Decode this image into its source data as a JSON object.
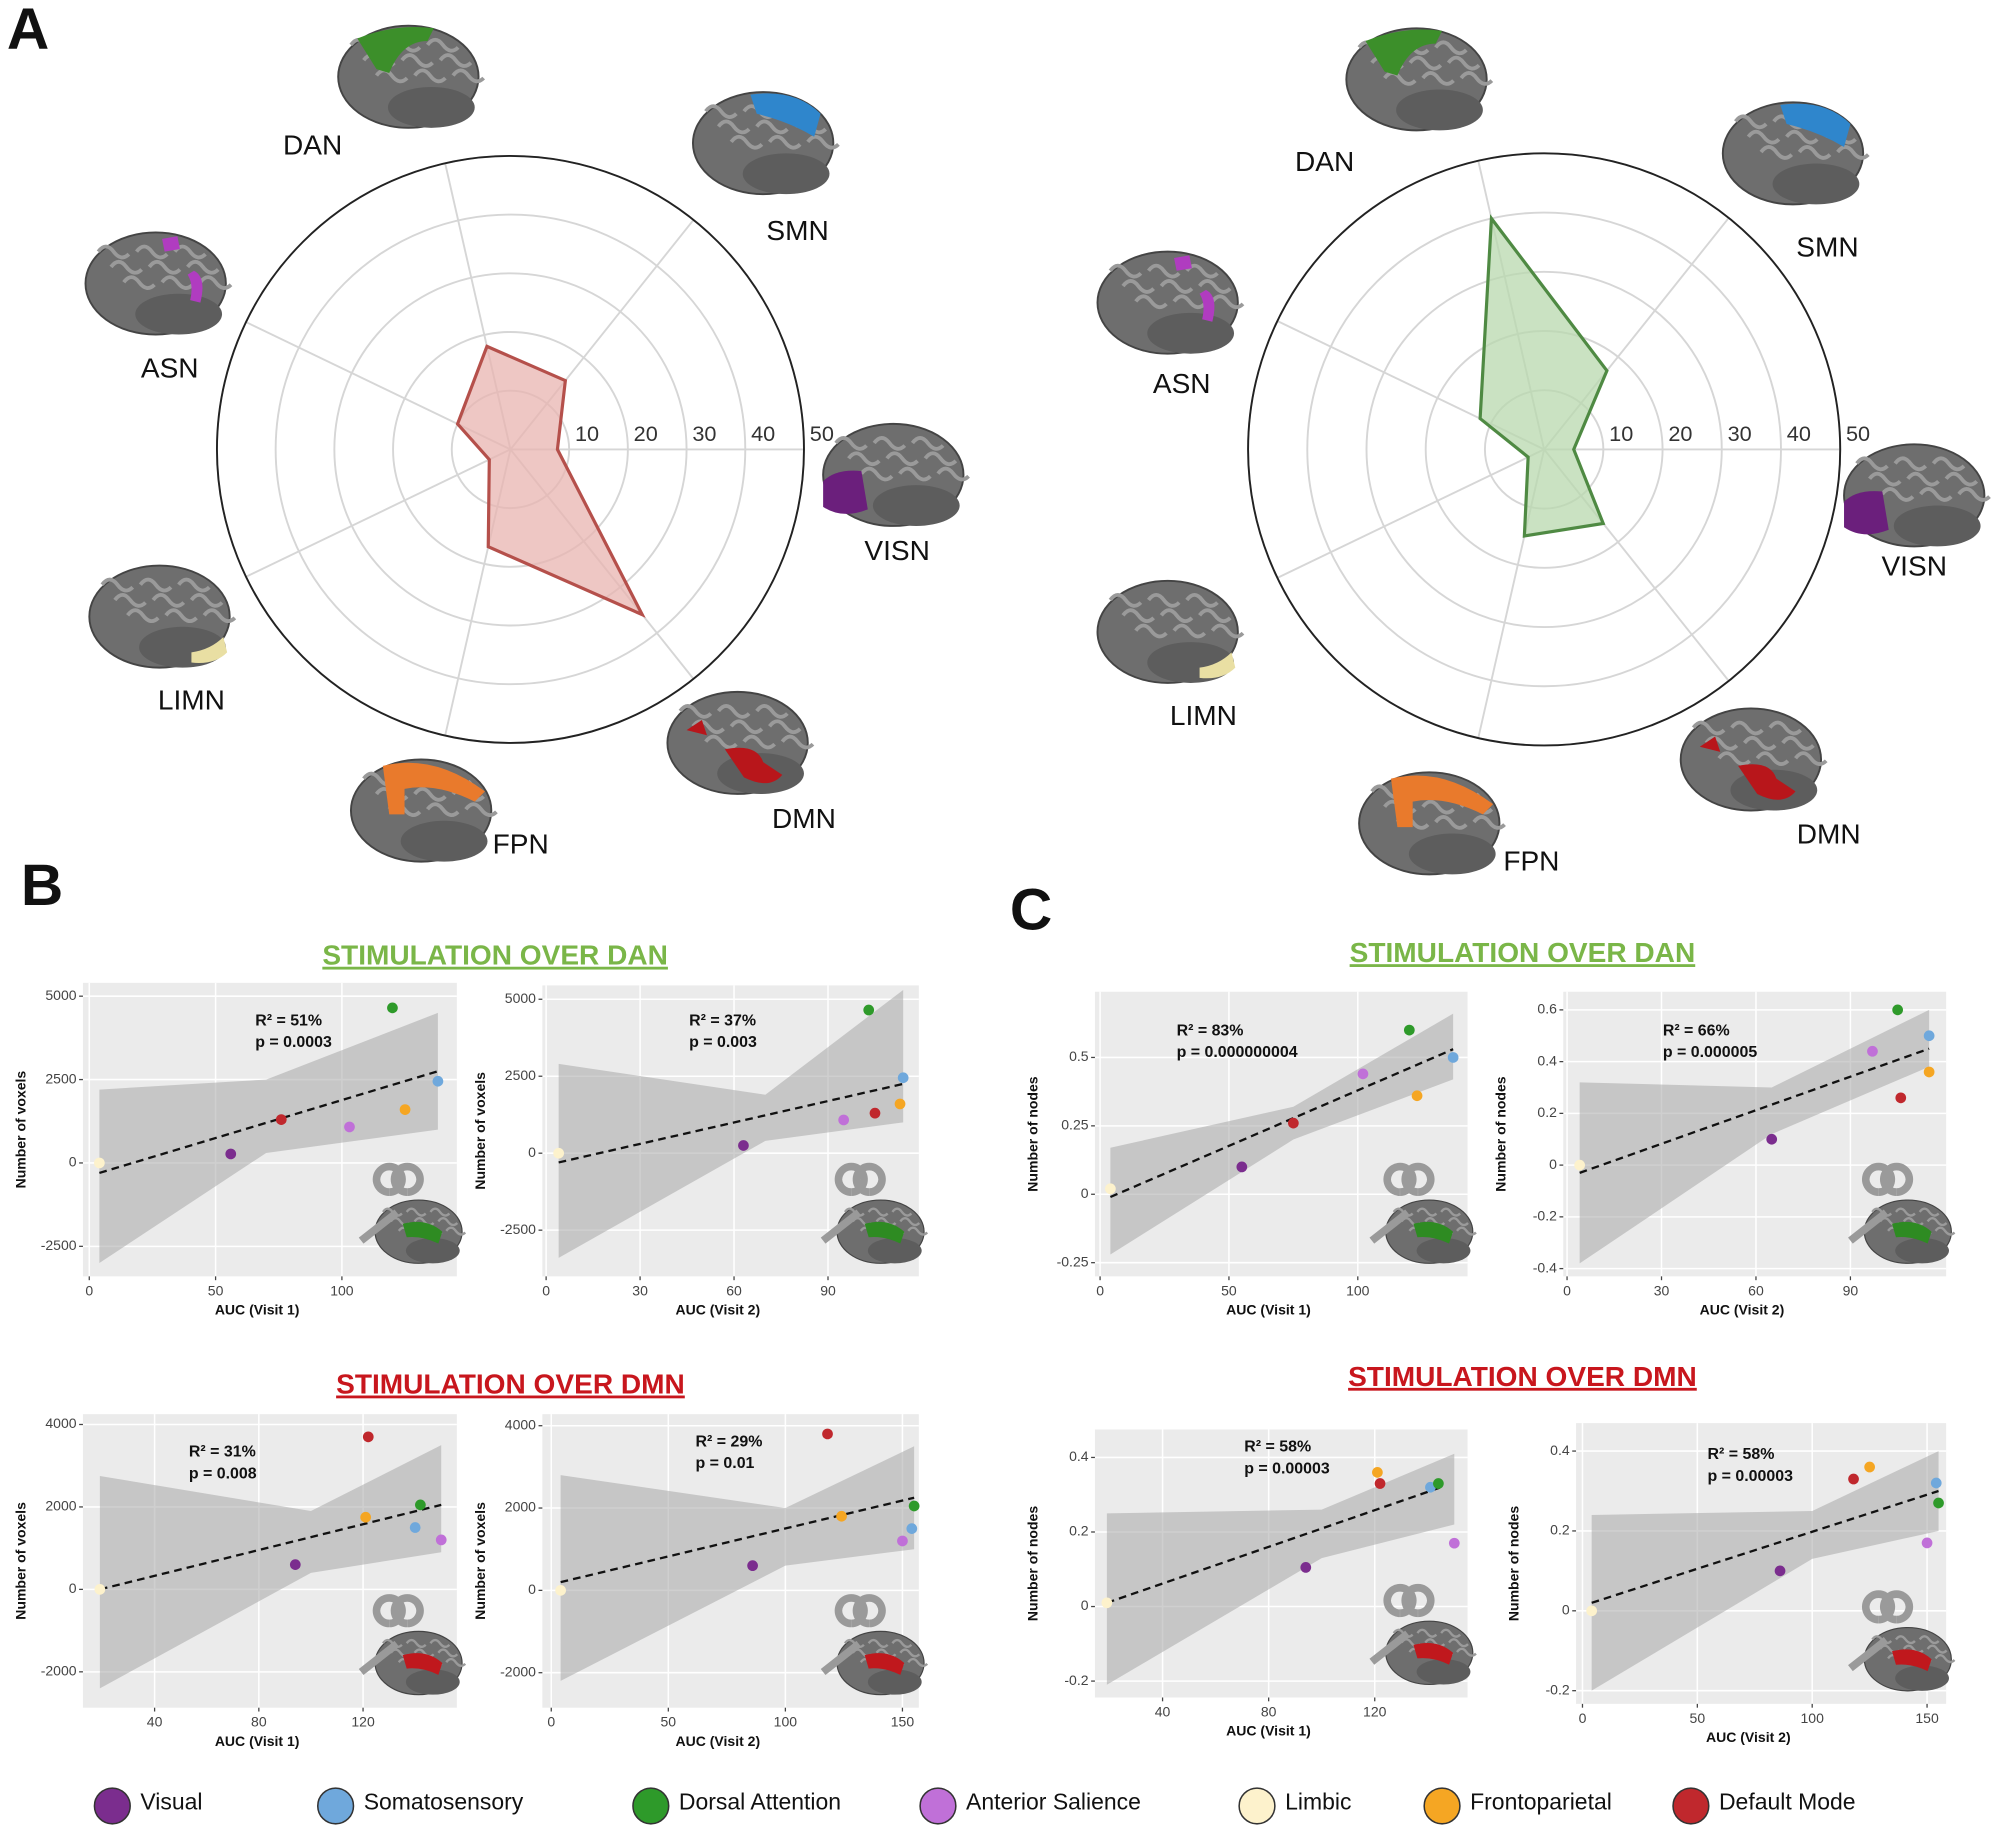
{
  "panel_letters": [
    "A",
    "B",
    "C"
  ],
  "headings": [
    "STIMULATION OVER DAN",
    "STIMULATION OVER DAN",
    "STIMULATION OVER DMN",
    "STIMULATION OVER DMN"
  ],
  "legend": [
    {
      "name": "Visual",
      "color": "#7b2d8e"
    },
    {
      "name": "Somatosensory",
      "color": "#6fa8dc"
    },
    {
      "name": "Dorsal Attention",
      "color": "#2e9a2a"
    },
    {
      "name": "Anterior Salience",
      "color": "#c070d8"
    },
    {
      "name": "Limbic",
      "color": "#fdf2cc"
    },
    {
      "name": "Frontoparietal",
      "color": "#f5a623"
    },
    {
      "name": "Default Mode",
      "color": "#c0282d"
    }
  ],
  "chart_data": [
    {
      "type": "radar",
      "categories": [
        "DAN",
        "SMN",
        "VISN",
        "DMN",
        "FPN",
        "LIMN",
        "ASN"
      ],
      "values": [
        18,
        15,
        8,
        36,
        17,
        4,
        10
      ],
      "color": "#b5504b",
      "fill": "#e8b4b0",
      "rlim": [
        0,
        50
      ],
      "rticks": [
        10,
        20,
        30,
        40,
        50
      ]
    },
    {
      "type": "radar",
      "categories": [
        "DAN",
        "SMN",
        "VISN",
        "DMN",
        "FPN",
        "LIMN",
        "ASN"
      ],
      "values": [
        40,
        17,
        5,
        16,
        15,
        3,
        12
      ],
      "color": "#4f8a43",
      "fill": "#b8d8ad",
      "rlim": [
        0,
        50
      ],
      "rticks": [
        10,
        20,
        30,
        40,
        50
      ]
    },
    {
      "type": "scatter",
      "xlabel": "AUC (Visit 1)",
      "ylabel": "Number of voxels",
      "annotations": [
        "R² = 51%",
        "p = 0.0003"
      ],
      "x": [
        56,
        138,
        120,
        103,
        4,
        125,
        76
      ],
      "y": [
        270,
        2450,
        4650,
        1080,
        0,
        1600,
        1300
      ],
      "fit": {
        "x": [
          4,
          138
        ],
        "y": [
          -300,
          2750
        ]
      },
      "band": {
        "x": [
          4,
          70,
          138
        ],
        "low": [
          -3000,
          300,
          1000
        ],
        "high": [
          2200,
          2500,
          4500
        ]
      },
      "xlim": [
        -2.5,
        145.5
      ],
      "ylim": [
        -3400,
        5400
      ],
      "xticks": [
        0,
        50,
        100
      ],
      "yticks": [
        -2500,
        0,
        2500,
        5000
      ],
      "grid": true,
      "stim": "#2e8b22"
    },
    {
      "type": "scatter",
      "xlabel": "AUC (Visit 2)",
      "ylabel": "Number of voxels",
      "annotations": [
        "R² = 37%",
        "p = 0.003"
      ],
      "x": [
        63,
        114,
        103,
        95,
        4,
        113,
        105
      ],
      "y": [
        250,
        2450,
        4650,
        1080,
        0,
        1600,
        1300
      ],
      "fit": {
        "x": [
          4,
          114
        ],
        "y": [
          -300,
          2250
        ]
      },
      "band": {
        "x": [
          4,
          70,
          114
        ],
        "low": [
          -3400,
          400,
          1000
        ],
        "high": [
          2900,
          1900,
          5300
        ]
      },
      "xlim": [
        -1.2,
        119
      ],
      "ylim": [
        -4000,
        5450
      ],
      "xticks": [
        0,
        30,
        60,
        90
      ],
      "yticks": [
        -2500,
        0,
        2500,
        5000
      ],
      "grid": true,
      "stim": "#2e8b22"
    },
    {
      "type": "scatter",
      "xlabel": "AUC (Visit 1)",
      "ylabel": "Number of nodes",
      "annotations": [
        "R² = 83%",
        "p = 0.000000004"
      ],
      "x": [
        55,
        137,
        120,
        102,
        4,
        123,
        75
      ],
      "y": [
        0.1,
        0.5,
        0.6,
        0.44,
        0.02,
        0.36,
        0.26
      ],
      "fit": {
        "x": [
          4,
          137
        ],
        "y": [
          -0.01,
          0.53
        ]
      },
      "band": {
        "x": [
          4,
          75,
          137
        ],
        "low": [
          -0.22,
          0.2,
          0.42
        ],
        "high": [
          0.17,
          0.32,
          0.66
        ]
      },
      "xlim": [
        -2,
        142.6
      ],
      "ylim": [
        -0.3,
        0.74
      ],
      "xticks": [
        0,
        50,
        100
      ],
      "yticks": [
        -0.25,
        0,
        0.25,
        0.5
      ],
      "grid": true,
      "stim": "#2e8b22"
    },
    {
      "type": "scatter",
      "xlabel": "AUC (Visit 2)",
      "ylabel": "Number of nodes",
      "annotations": [
        "R² = 66%",
        "p = 0.000005"
      ],
      "x": [
        65,
        115,
        105,
        97,
        4,
        115,
        106
      ],
      "y": [
        0.1,
        0.5,
        0.6,
        0.44,
        0,
        0.36,
        0.26
      ],
      "fit": {
        "x": [
          4,
          115
        ],
        "y": [
          -0.03,
          0.45
        ]
      },
      "band": {
        "x": [
          4,
          65,
          115
        ],
        "low": [
          -0.38,
          0.12,
          0.38
        ],
        "high": [
          0.32,
          0.3,
          0.6
        ]
      },
      "xlim": [
        -1.2,
        120.4
      ],
      "ylim": [
        -0.43,
        0.67
      ],
      "xticks": [
        0,
        30,
        60,
        90
      ],
      "yticks": [
        -0.4,
        -0.2,
        0,
        0.2,
        0.4,
        0.6
      ],
      "grid": true,
      "stim": "#2e8b22"
    },
    {
      "type": "scatter",
      "xlabel": "AUC (Visit 1)",
      "ylabel": "Number of voxels",
      "annotations": [
        "R² = 31%",
        "p = 0.008"
      ],
      "x": [
        94,
        140,
        142,
        150,
        19,
        121,
        122
      ],
      "y": [
        600,
        1500,
        2050,
        1200,
        0,
        1750,
        3700
      ],
      "fit": {
        "x": [
          19,
          150
        ],
        "y": [
          0,
          2050
        ]
      },
      "band": {
        "x": [
          19,
          100,
          150
        ],
        "low": [
          -2400,
          400,
          900
        ],
        "high": [
          2750,
          1900,
          3500
        ]
      },
      "xlim": [
        12.5,
        156
      ],
      "ylim": [
        -2870,
        4250
      ],
      "xticks": [
        40,
        80,
        120
      ],
      "yticks": [
        -2000,
        0,
        2000,
        4000
      ],
      "grid": true,
      "stim": "#c0181d"
    },
    {
      "type": "scatter",
      "xlabel": "AUC (Visit 2)",
      "ylabel": "Number of voxels",
      "annotations": [
        "R² = 29%",
        "p = 0.01"
      ],
      "x": [
        86,
        154,
        155,
        150,
        4,
        124,
        118
      ],
      "y": [
        600,
        1500,
        2050,
        1200,
        0,
        1800,
        3800
      ],
      "fit": {
        "x": [
          4,
          155
        ],
        "y": [
          200,
          2250
        ]
      },
      "band": {
        "x": [
          4,
          100,
          155
        ],
        "low": [
          -2200,
          600,
          1000
        ],
        "high": [
          2800,
          2000,
          3500
        ]
      },
      "xlim": [
        -3.8,
        157
      ],
      "ylim": [
        -2850,
        4280
      ],
      "xticks": [
        0,
        50,
        100,
        150
      ],
      "yticks": [
        -2000,
        0,
        2000,
        4000
      ],
      "grid": true,
      "stim": "#c0181d"
    },
    {
      "type": "scatter",
      "xlabel": "AUC (Visit 1)",
      "ylabel": "Number of nodes",
      "annotations": [
        "R² = 58%",
        "p = 0.00003"
      ],
      "x": [
        94,
        141,
        144,
        150,
        19,
        121,
        122
      ],
      "y": [
        0.105,
        0.32,
        0.33,
        0.17,
        0.01,
        0.36,
        0.33
      ],
      "fit": {
        "x": [
          19,
          145
        ],
        "y": [
          0.01,
          0.32
        ]
      },
      "band": {
        "x": [
          19,
          100,
          150
        ],
        "low": [
          -0.21,
          0.13,
          0.22
        ],
        "high": [
          0.25,
          0.26,
          0.41
        ]
      },
      "xlim": [
        14.5,
        155
      ],
      "ylim": [
        -0.244,
        0.475
      ],
      "xticks": [
        40,
        80,
        120
      ],
      "yticks": [
        -0.2,
        0,
        0.2,
        0.4
      ],
      "grid": true,
      "stim": "#c0181d"
    },
    {
      "type": "scatter",
      "xlabel": "AUC (Visit 2)",
      "ylabel": "Number of nodes",
      "annotations": [
        "R² = 58%",
        "p = 0.00003"
      ],
      "x": [
        86,
        154,
        155,
        150,
        4,
        125,
        118
      ],
      "y": [
        0.1,
        0.32,
        0.27,
        0.17,
        0,
        0.36,
        0.33
      ],
      "fit": {
        "x": [
          4,
          155
        ],
        "y": [
          0.02,
          0.3
        ]
      },
      "band": {
        "x": [
          4,
          100,
          155
        ],
        "low": [
          -0.2,
          0.13,
          0.2
        ],
        "high": [
          0.24,
          0.25,
          0.4
        ]
      },
      "xlim": [
        -2.8,
        158.3
      ],
      "ylim": [
        -0.233,
        0.47
      ],
      "xticks": [
        0,
        50,
        100,
        150
      ],
      "yticks": [
        -0.2,
        0,
        0.2,
        0.4
      ],
      "grid": true,
      "stim": "#c0181d"
    }
  ]
}
